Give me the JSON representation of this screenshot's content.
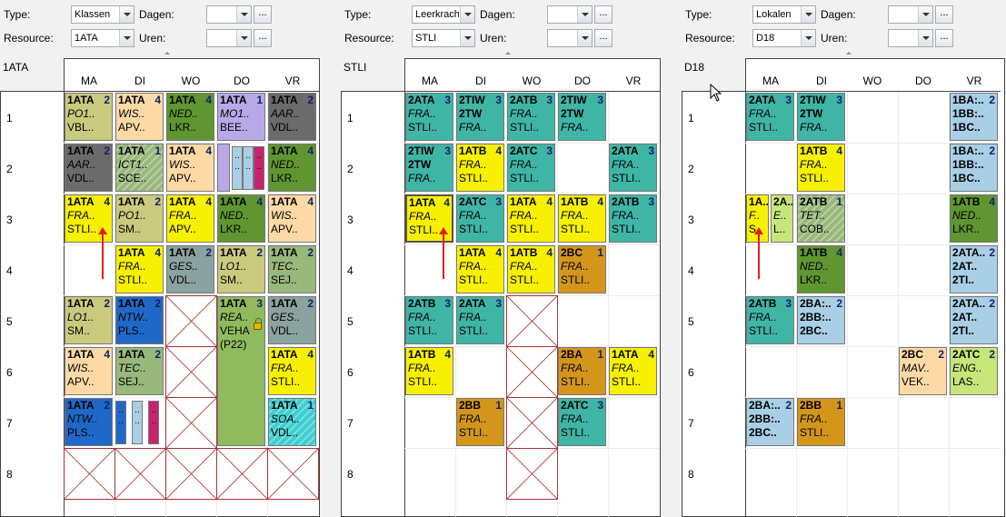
{
  "labels": {
    "type": "Type:",
    "resource": "Resource:",
    "dagen": "Dagen:",
    "uren": "Uren:",
    "ellipsis": "..."
  },
  "days": [
    "MA",
    "DI",
    "WO",
    "DO",
    "VR"
  ],
  "periods": [
    "1",
    "2",
    "3",
    "4",
    "5",
    "6",
    "7",
    "8"
  ],
  "panels": [
    {
      "type_value": "Klassen",
      "resource_value": "1ATA",
      "title": "1ATA",
      "dagen_value": "",
      "uren_value": ""
    },
    {
      "type_value": "Leerkracht",
      "resource_value": "STLI",
      "title": "STLI",
      "dagen_value": "",
      "uren_value": ""
    },
    {
      "type_value": "Lokalen",
      "resource_value": "D18",
      "title": "D18",
      "dagen_value": "",
      "uren_value": ""
    }
  ],
  "colors": {
    "teal": "#3fb5a6",
    "yellow": "#f7f000",
    "orange": "#d4961a",
    "olive": "#c9ca7e",
    "darkgreen": "#5f9631",
    "peach": "#fdd9a6",
    "gray": "#6b6b6b",
    "lavender": "#b9a8e8",
    "blue": "#2068c8",
    "lightblue": "#a9cfe6",
    "lightgreen": "#8fbb5e",
    "slate": "#8ba3a0",
    "sage": "#98b87c",
    "cyan": "#3ecfcf",
    "lime": "#c6e67a",
    "magenta": "#c8246e"
  },
  "lessons": [
    {
      "p": 0,
      "d": 0,
      "h": 0,
      "t": [
        "1ATA",
        "2",
        "PO1..",
        "VBL.."
      ],
      "c": "olive"
    },
    {
      "p": 0,
      "d": 1,
      "h": 0,
      "t": [
        "1ATA",
        "4",
        "WIS..",
        "APV.."
      ],
      "c": "peach"
    },
    {
      "p": 0,
      "d": 2,
      "h": 0,
      "t": [
        "1ATA",
        "4",
        "NED..",
        "LKR.."
      ],
      "c": "darkgreen"
    },
    {
      "p": 0,
      "d": 3,
      "h": 0,
      "t": [
        "1ATA",
        "1",
        "MO1..",
        "BEE.."
      ],
      "c": "lavender"
    },
    {
      "p": 0,
      "d": 4,
      "h": 0,
      "t": [
        "1ATA",
        "2",
        "AAR..",
        "VDL.."
      ],
      "c": "gray"
    },
    {
      "p": 0,
      "d": 0,
      "h": 1,
      "t": [
        "1ATA",
        "2",
        "AAR..",
        "VDL.."
      ],
      "c": "gray"
    },
    {
      "p": 0,
      "d": 1,
      "h": 1,
      "t": [
        "1ATA",
        "1",
        "ICT1..",
        "SCE.."
      ],
      "c": "sage",
      "hatch": true
    },
    {
      "p": 0,
      "d": 2,
      "h": 1,
      "t": [
        "1ATA",
        "4",
        "WIS..",
        "APV.."
      ],
      "c": "peach"
    },
    {
      "p": 0,
      "d": 4,
      "h": 1,
      "t": [
        "1ATA",
        "4",
        "NED..",
        "LKR.."
      ],
      "c": "darkgreen"
    },
    {
      "p": 0,
      "d": 0,
      "h": 2,
      "t": [
        "1ATA",
        "4",
        "FRA..",
        "STLI.."
      ],
      "c": "yellow"
    },
    {
      "p": 0,
      "d": 1,
      "h": 2,
      "t": [
        "1ATA",
        "2",
        "PO1..",
        "SM.."
      ],
      "c": "olive"
    },
    {
      "p": 0,
      "d": 2,
      "h": 2,
      "t": [
        "1ATA",
        "4",
        "FRA..",
        "APV.."
      ],
      "c": "yellow"
    },
    {
      "p": 0,
      "d": 3,
      "h": 2,
      "t": [
        "1ATA",
        "4",
        "NED..",
        "LKR.."
      ],
      "c": "darkgreen"
    },
    {
      "p": 0,
      "d": 4,
      "h": 2,
      "t": [
        "1ATA",
        "4",
        "WIS..",
        "APV.."
      ],
      "c": "peach"
    },
    {
      "p": 0,
      "d": 1,
      "h": 3,
      "t": [
        "1ATA",
        "4",
        "FRA..",
        "STLI.."
      ],
      "c": "yellow"
    },
    {
      "p": 0,
      "d": 2,
      "h": 3,
      "t": [
        "1ATA",
        "2",
        "GES..",
        "VDL.."
      ],
      "c": "slate"
    },
    {
      "p": 0,
      "d": 3,
      "h": 3,
      "t": [
        "1ATA",
        "2",
        "LO1..",
        "SM.."
      ],
      "c": "olive"
    },
    {
      "p": 0,
      "d": 4,
      "h": 3,
      "t": [
        "1ATA",
        "2",
        "TEC..",
        "SEJ.."
      ],
      "c": "sage"
    },
    {
      "p": 0,
      "d": 0,
      "h": 4,
      "t": [
        "1ATA",
        "2",
        "LO1..",
        "SM.."
      ],
      "c": "olive"
    },
    {
      "p": 0,
      "d": 1,
      "h": 4,
      "t": [
        "1ATA",
        "2",
        "NTW..",
        "PLS.."
      ],
      "c": "blue"
    },
    {
      "p": 0,
      "d": 3,
      "h": 4,
      "t": [
        "1ATA",
        "3",
        "REA..",
        "VEHA",
        "(P22)"
      ],
      "c": "lightgreen",
      "span": 3,
      "lock": true
    },
    {
      "p": 0,
      "d": 4,
      "h": 4,
      "t": [
        "1ATA",
        "2",
        "GES..",
        "VDL.."
      ],
      "c": "slate"
    },
    {
      "p": 0,
      "d": 0,
      "h": 5,
      "t": [
        "1ATA",
        "4",
        "WIS..",
        "APV.."
      ],
      "c": "peach"
    },
    {
      "p": 0,
      "d": 1,
      "h": 5,
      "t": [
        "1ATA",
        "2",
        "TEC..",
        "SEJ.."
      ],
      "c": "sage"
    },
    {
      "p": 0,
      "d": 4,
      "h": 5,
      "t": [
        "1ATA",
        "4",
        "FRA..",
        "STLI.."
      ],
      "c": "yellow"
    },
    {
      "p": 0,
      "d": 0,
      "h": 6,
      "t": [
        "1ATA",
        "2",
        "NTW..",
        "PLS.."
      ],
      "c": "blue"
    },
    {
      "p": 0,
      "d": 4,
      "h": 6,
      "t": [
        "1ATA",
        "1",
        "SOA..",
        "VDL.."
      ],
      "c": "cyan",
      "hatch": true
    },
    {
      "p": 1,
      "d": 0,
      "h": 0,
      "t": [
        "2ATA",
        "3",
        "FRA..",
        "STLI.."
      ],
      "c": "teal"
    },
    {
      "p": 1,
      "d": 1,
      "h": 0,
      "t": [
        "2TIW",
        "3",
        "2TW",
        "FRA.."
      ],
      "c": "teal"
    },
    {
      "p": 1,
      "d": 2,
      "h": 0,
      "t": [
        "2ATB",
        "3",
        "FRA..",
        "STLI.."
      ],
      "c": "teal"
    },
    {
      "p": 1,
      "d": 3,
      "h": 0,
      "t": [
        "2TIW",
        "3",
        "2TW",
        "FRA.."
      ],
      "c": "teal"
    },
    {
      "p": 1,
      "d": 0,
      "h": 1,
      "t": [
        "2TIW",
        "3",
        "2TW",
        "FRA.."
      ],
      "c": "teal"
    },
    {
      "p": 1,
      "d": 1,
      "h": 1,
      "t": [
        "1ATB",
        "4",
        "FRA..",
        "STLI.."
      ],
      "c": "yellow"
    },
    {
      "p": 1,
      "d": 2,
      "h": 1,
      "t": [
        "2ATC",
        "3",
        "FRA..",
        "STLI.."
      ],
      "c": "teal"
    },
    {
      "p": 1,
      "d": 4,
      "h": 1,
      "t": [
        "2ATA",
        "3",
        "FRA..",
        "STLI.."
      ],
      "c": "teal"
    },
    {
      "p": 1,
      "d": 0,
      "h": 2,
      "t": [
        "1ATA",
        "4",
        "FRA..",
        "STLI.."
      ],
      "c": "yellow",
      "sel": true
    },
    {
      "p": 1,
      "d": 1,
      "h": 2,
      "t": [
        "2ATC",
        "3",
        "FRA..",
        "STLI.."
      ],
      "c": "teal"
    },
    {
      "p": 1,
      "d": 2,
      "h": 2,
      "t": [
        "1ATA",
        "4",
        "FRA..",
        "STLI.."
      ],
      "c": "yellow"
    },
    {
      "p": 1,
      "d": 3,
      "h": 2,
      "t": [
        "1ATB",
        "4",
        "FRA..",
        "STLI.."
      ],
      "c": "yellow"
    },
    {
      "p": 1,
      "d": 4,
      "h": 2,
      "t": [
        "2ATB",
        "3",
        "FRA..",
        "STLI.."
      ],
      "c": "teal"
    },
    {
      "p": 1,
      "d": 1,
      "h": 3,
      "t": [
        "1ATA",
        "4",
        "FRA..",
        "STLI.."
      ],
      "c": "yellow"
    },
    {
      "p": 1,
      "d": 2,
      "h": 3,
      "t": [
        "1ATB",
        "4",
        "FRA..",
        "STLI.."
      ],
      "c": "yellow"
    },
    {
      "p": 1,
      "d": 3,
      "h": 3,
      "t": [
        "2BC",
        "1",
        "FRA..",
        "STLI.."
      ],
      "c": "orange"
    },
    {
      "p": 1,
      "d": 0,
      "h": 4,
      "t": [
        "2ATB",
        "3",
        "FRA..",
        "STLI.."
      ],
      "c": "teal"
    },
    {
      "p": 1,
      "d": 1,
      "h": 4,
      "t": [
        "2ATA",
        "3",
        "FRA..",
        "STLI.."
      ],
      "c": "teal"
    },
    {
      "p": 1,
      "d": 0,
      "h": 5,
      "t": [
        "1ATB",
        "4",
        "FRA..",
        "STLI.."
      ],
      "c": "yellow"
    },
    {
      "p": 1,
      "d": 3,
      "h": 5,
      "t": [
        "2BA",
        "1",
        "FRA..",
        "STLI.."
      ],
      "c": "orange"
    },
    {
      "p": 1,
      "d": 4,
      "h": 5,
      "t": [
        "1ATA",
        "4",
        "FRA..",
        "STLI.."
      ],
      "c": "yellow"
    },
    {
      "p": 1,
      "d": 1,
      "h": 6,
      "t": [
        "2BB",
        "1",
        "FRA..",
        "STLI.."
      ],
      "c": "orange"
    },
    {
      "p": 1,
      "d": 3,
      "h": 6,
      "t": [
        "2ATC",
        "3",
        "FRA..",
        "STLI.."
      ],
      "c": "teal"
    },
    {
      "p": 2,
      "d": 0,
      "h": 0,
      "t": [
        "2ATA",
        "3",
        "FRA..",
        "STLI.."
      ],
      "c": "teal"
    },
    {
      "p": 2,
      "d": 1,
      "h": 0,
      "t": [
        "2TIW",
        "3",
        "2TW",
        "FRA.."
      ],
      "c": "teal"
    },
    {
      "p": 2,
      "d": 4,
      "h": 0,
      "t": [
        "1BA:..",
        "2",
        "1BB:..",
        "1BC.."
      ],
      "c": "lightblue"
    },
    {
      "p": 2,
      "d": 1,
      "h": 1,
      "t": [
        "1ATB",
        "4",
        "FRA..",
        "STLI.."
      ],
      "c": "yellow"
    },
    {
      "p": 2,
      "d": 4,
      "h": 1,
      "t": [
        "1BA:..",
        "2",
        "1BB:..",
        "1BC.."
      ],
      "c": "lightblue"
    },
    {
      "p": 2,
      "d": 1,
      "h": 2,
      "t": [
        "2ATB",
        "1",
        "TET..",
        "COB.."
      ],
      "c": "sage",
      "hatch": true
    },
    {
      "p": 2,
      "d": 4,
      "h": 2,
      "t": [
        "1ATB",
        "4",
        "NED..",
        "LKR.."
      ],
      "c": "darkgreen"
    },
    {
      "p": 2,
      "d": 1,
      "h": 3,
      "t": [
        "1ATB",
        "4",
        "NED..",
        "LKR.."
      ],
      "c": "darkgreen"
    },
    {
      "p": 2,
      "d": 4,
      "h": 3,
      "t": [
        "2ATA..",
        "2",
        "2AT..",
        "2TI.."
      ],
      "c": "lightblue"
    },
    {
      "p": 2,
      "d": 0,
      "h": 4,
      "t": [
        "2ATB",
        "3",
        "FRA..",
        "STLI.."
      ],
      "c": "teal"
    },
    {
      "p": 2,
      "d": 1,
      "h": 4,
      "t": [
        "2BA:..",
        "2",
        "2BB:..",
        "2BC.."
      ],
      "c": "lightblue"
    },
    {
      "p": 2,
      "d": 4,
      "h": 4,
      "t": [
        "2ATA..",
        "2",
        "2AT..",
        "2TI.."
      ],
      "c": "lightblue"
    },
    {
      "p": 2,
      "d": 3,
      "h": 5,
      "t": [
        "2BC",
        "2",
        "MAV..",
        "VEK.."
      ],
      "c": "peach"
    },
    {
      "p": 2,
      "d": 4,
      "h": 5,
      "t": [
        "2ATC",
        "2",
        "ENG..",
        "LAS.."
      ],
      "c": "lime"
    },
    {
      "p": 2,
      "d": 0,
      "h": 6,
      "t": [
        "2BA:..",
        "2",
        "2BB:..",
        "2BC.."
      ],
      "c": "lightblue"
    },
    {
      "p": 2,
      "d": 1,
      "h": 6,
      "t": [
        "2BB",
        "1",
        "FRA..",
        "STLI.."
      ],
      "c": "orange"
    }
  ],
  "split_lessons": [
    {
      "p": 2,
      "d": 0,
      "h": 2,
      "parts": [
        {
          "t": [
            "1A..",
            "F..",
            "S.."
          ],
          "c": "yellow"
        },
        {
          "t": [
            "2A..",
            "E..",
            "L.."
          ],
          "c": "lime"
        }
      ]
    }
  ],
  "strips": [
    {
      "p": 0,
      "d": 3,
      "h": 1,
      "first": {
        "t": [
          "1ATA",
          "4",
          "..",
          "BEE.."
        ],
        "c": "lavender"
      },
      "bars": [
        {
          "c": "lightblue",
          "t": "..\n.."
        },
        {
          "c": "lightblue",
          "t": "..\n.."
        },
        {
          "c": "magenta",
          "t": "..\n.."
        }
      ]
    },
    {
      "p": 0,
      "d": 1,
      "h": 6,
      "bars": [
        {
          "c": "blue",
          "t": "..\n.."
        },
        {
          "c": "lightblue",
          "t": "..\n.."
        },
        {
          "c": "magenta",
          "t": "..\n.."
        }
      ]
    }
  ],
  "crossed": [
    {
      "p": 0,
      "d": 2,
      "h": 4
    },
    {
      "p": 0,
      "d": 2,
      "h": 5
    },
    {
      "p": 0,
      "d": 2,
      "h": 6
    },
    {
      "p": 0,
      "d": 0,
      "h": 7
    },
    {
      "p": 0,
      "d": 1,
      "h": 7
    },
    {
      "p": 0,
      "d": 2,
      "h": 7
    },
    {
      "p": 0,
      "d": 3,
      "h": 7
    },
    {
      "p": 0,
      "d": 4,
      "h": 7
    },
    {
      "p": 1,
      "d": 2,
      "h": 4
    },
    {
      "p": 1,
      "d": 2,
      "h": 5
    },
    {
      "p": 1,
      "d": 2,
      "h": 6
    },
    {
      "p": 1,
      "d": 2,
      "h": 7
    }
  ],
  "arrows": [
    {
      "p": 0,
      "d": 0,
      "h": 2
    },
    {
      "p": 1,
      "d": 0,
      "h": 2
    },
    {
      "p": 2,
      "d": 0,
      "h": 2
    }
  ]
}
